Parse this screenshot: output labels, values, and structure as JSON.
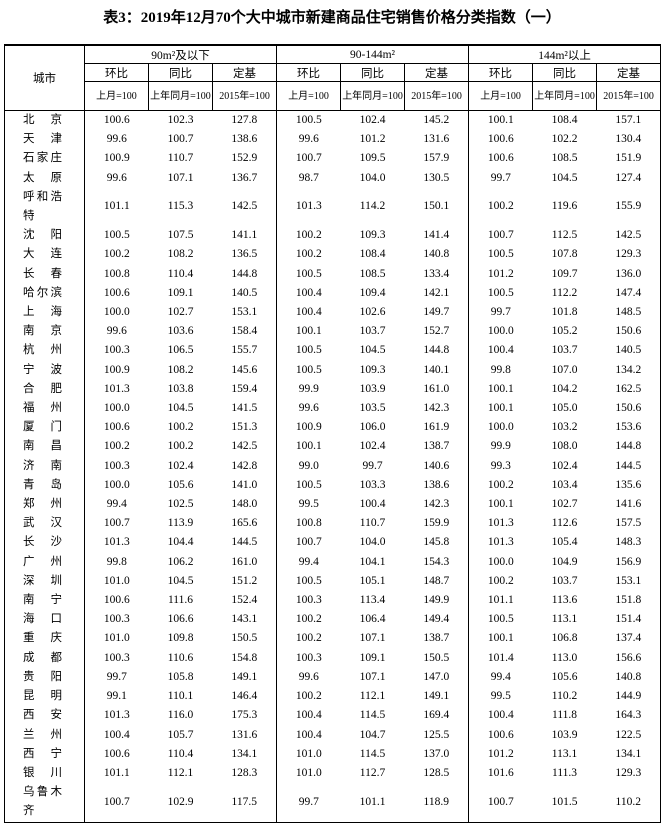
{
  "header": {
    "title": "表3：2019年12月70个大中城市新建商品住宅销售价格分类指数（一）"
  },
  "table": {
    "city_header": "城市",
    "groups": [
      "90m²及以下",
      "90-144m²",
      "144m²以上"
    ],
    "subheaders": [
      "环比",
      "同比",
      "定基"
    ],
    "bases": [
      "上月=100",
      "上年同月=100",
      "2015年=100"
    ],
    "rows": [
      [
        "北京",
        "100.6",
        "102.3",
        "127.8",
        "100.5",
        "102.4",
        "145.2",
        "100.1",
        "108.4",
        "157.1"
      ],
      [
        "天津",
        "99.6",
        "100.7",
        "138.6",
        "99.6",
        "101.2",
        "131.6",
        "100.6",
        "102.2",
        "130.4"
      ],
      [
        "石家庄",
        "100.9",
        "110.7",
        "152.9",
        "100.7",
        "109.5",
        "157.9",
        "100.6",
        "108.5",
        "151.9"
      ],
      [
        "太原",
        "99.6",
        "107.1",
        "136.7",
        "98.7",
        "104.0",
        "130.5",
        "99.7",
        "104.5",
        "127.4"
      ],
      [
        "呼和浩特",
        "101.1",
        "115.3",
        "142.5",
        "101.3",
        "114.2",
        "150.1",
        "100.2",
        "119.6",
        "155.9"
      ],
      [
        "沈阳",
        "100.5",
        "107.5",
        "141.1",
        "100.2",
        "109.3",
        "141.4",
        "100.7",
        "112.5",
        "142.5"
      ],
      [
        "大连",
        "100.2",
        "108.2",
        "136.5",
        "100.2",
        "108.4",
        "140.8",
        "100.5",
        "107.8",
        "129.3"
      ],
      [
        "长春",
        "100.8",
        "110.4",
        "144.8",
        "100.5",
        "108.5",
        "133.4",
        "101.2",
        "109.7",
        "136.0"
      ],
      [
        "哈尔滨",
        "100.6",
        "109.1",
        "140.5",
        "100.4",
        "109.4",
        "142.1",
        "100.5",
        "112.2",
        "147.4"
      ],
      [
        "上海",
        "100.0",
        "102.7",
        "153.1",
        "100.4",
        "102.6",
        "149.7",
        "99.7",
        "101.8",
        "148.5"
      ],
      [
        "南京",
        "99.6",
        "103.6",
        "158.4",
        "100.1",
        "103.7",
        "152.7",
        "100.0",
        "105.2",
        "150.6"
      ],
      [
        "杭州",
        "100.3",
        "106.5",
        "155.7",
        "100.5",
        "104.5",
        "144.8",
        "100.4",
        "103.7",
        "140.5"
      ],
      [
        "宁波",
        "100.9",
        "108.2",
        "145.6",
        "100.5",
        "109.3",
        "140.1",
        "99.8",
        "107.0",
        "134.2"
      ],
      [
        "合肥",
        "101.3",
        "103.8",
        "159.4",
        "99.9",
        "103.9",
        "161.0",
        "100.1",
        "104.2",
        "162.5"
      ],
      [
        "福州",
        "100.0",
        "104.5",
        "141.5",
        "99.6",
        "103.5",
        "142.3",
        "100.1",
        "105.0",
        "150.6"
      ],
      [
        "厦门",
        "100.6",
        "100.2",
        "151.3",
        "100.9",
        "106.0",
        "161.9",
        "100.0",
        "103.2",
        "153.6"
      ],
      [
        "南昌",
        "100.2",
        "100.2",
        "142.5",
        "100.1",
        "102.4",
        "138.7",
        "99.9",
        "108.0",
        "144.8"
      ],
      [
        "济南",
        "100.3",
        "102.4",
        "142.8",
        "99.0",
        "99.7",
        "140.6",
        "99.3",
        "102.4",
        "144.5"
      ],
      [
        "青岛",
        "100.0",
        "105.6",
        "141.0",
        "100.5",
        "103.3",
        "138.6",
        "100.2",
        "103.4",
        "135.6"
      ],
      [
        "郑州",
        "99.4",
        "102.5",
        "148.0",
        "99.5",
        "100.4",
        "142.3",
        "100.1",
        "102.7",
        "141.6"
      ],
      [
        "武汉",
        "100.7",
        "113.9",
        "165.6",
        "100.8",
        "110.7",
        "159.9",
        "101.3",
        "112.6",
        "157.5"
      ],
      [
        "长沙",
        "101.3",
        "104.4",
        "144.5",
        "100.7",
        "104.0",
        "145.8",
        "101.3",
        "105.4",
        "148.3"
      ],
      [
        "广州",
        "99.8",
        "106.2",
        "161.0",
        "99.4",
        "104.1",
        "154.3",
        "100.0",
        "104.9",
        "156.9"
      ],
      [
        "深圳",
        "101.0",
        "104.5",
        "151.2",
        "100.5",
        "105.1",
        "148.7",
        "100.2",
        "103.7",
        "153.1"
      ],
      [
        "南宁",
        "100.6",
        "111.6",
        "152.4",
        "100.3",
        "113.4",
        "149.9",
        "101.1",
        "113.6",
        "151.8"
      ],
      [
        "海口",
        "100.3",
        "106.6",
        "143.1",
        "100.2",
        "106.4",
        "149.4",
        "100.5",
        "113.1",
        "151.4"
      ],
      [
        "重庆",
        "101.0",
        "109.8",
        "150.5",
        "100.2",
        "107.1",
        "138.7",
        "100.1",
        "106.8",
        "137.4"
      ],
      [
        "成都",
        "100.3",
        "110.6",
        "154.8",
        "100.3",
        "109.1",
        "150.5",
        "101.4",
        "113.0",
        "156.6"
      ],
      [
        "贵阳",
        "99.7",
        "105.8",
        "149.1",
        "99.6",
        "107.1",
        "147.0",
        "99.4",
        "105.6",
        "140.8"
      ],
      [
        "昆明",
        "99.1",
        "110.1",
        "146.4",
        "100.2",
        "112.1",
        "149.1",
        "99.5",
        "110.2",
        "144.9"
      ],
      [
        "西安",
        "101.3",
        "116.0",
        "175.3",
        "100.4",
        "114.5",
        "169.4",
        "100.4",
        "111.8",
        "164.3"
      ],
      [
        "兰州",
        "100.4",
        "105.7",
        "131.6",
        "100.4",
        "104.7",
        "125.5",
        "100.6",
        "103.9",
        "122.5"
      ],
      [
        "西宁",
        "100.6",
        "110.4",
        "134.1",
        "101.0",
        "114.5",
        "137.0",
        "101.2",
        "113.1",
        "134.1"
      ],
      [
        "银川",
        "101.1",
        "112.1",
        "128.3",
        "101.0",
        "112.7",
        "128.5",
        "101.6",
        "111.3",
        "129.3"
      ],
      [
        "乌鲁木齐",
        "100.7",
        "102.9",
        "117.5",
        "99.7",
        "101.1",
        "118.9",
        "100.7",
        "101.5",
        "110.2"
      ]
    ]
  }
}
